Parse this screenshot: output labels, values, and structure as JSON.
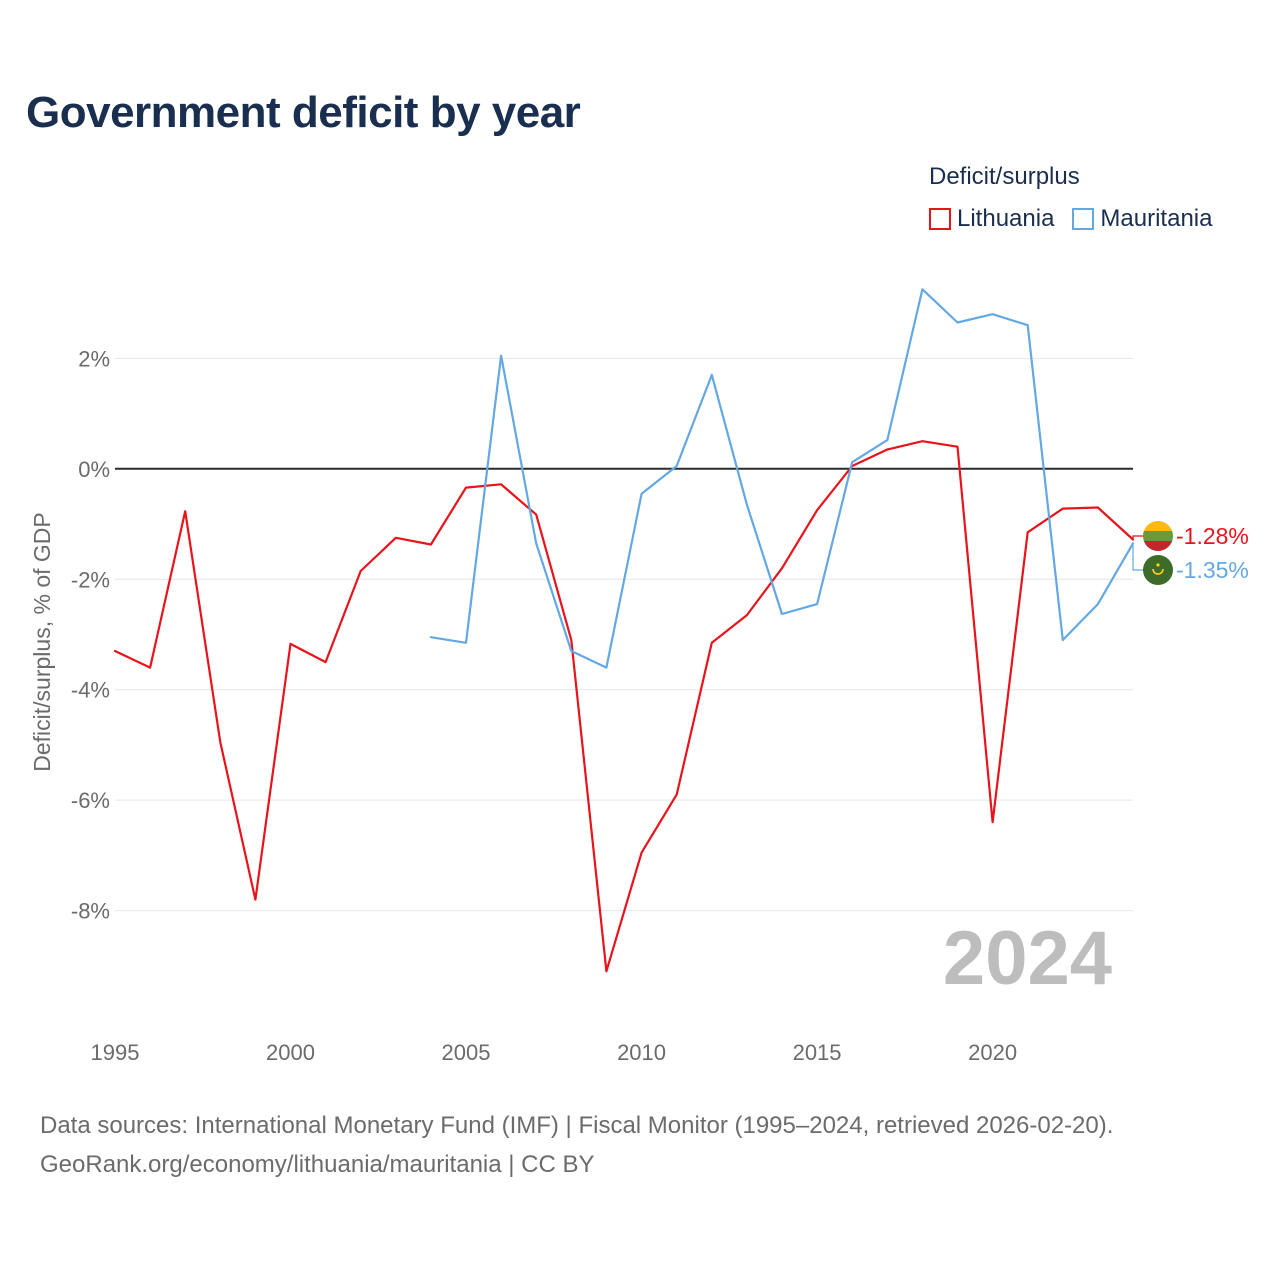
{
  "title": "Government deficit by year",
  "legend": {
    "title": "Deficit/surplus",
    "items": [
      {
        "label": "Lithuania",
        "color": "#e8131b"
      },
      {
        "label": "Mauritania",
        "color": "#64a8e3"
      }
    ]
  },
  "footer": {
    "line1": "Data sources: International Monetary Fund (IMF) | Fiscal Monitor (1995–2024, retrieved 2026-02-20).",
    "line2": "GeoRank.org/economy/lithuania/mauritania | CC BY"
  },
  "chart_data": {
    "type": "line",
    "title": "Government deficit by year",
    "xlabel": "",
    "ylabel": "Deficit/surplus, % of GDP",
    "xlim": [
      1995,
      2024
    ],
    "ylim": [
      -9.8,
      3.6
    ],
    "x_ticks": [
      1995,
      2000,
      2005,
      2010,
      2015,
      2020
    ],
    "x_tick_labels": [
      "1995",
      "2000",
      "2005",
      "2010",
      "2015",
      "2020"
    ],
    "y_ticks": [
      2,
      0,
      -2,
      -4,
      -6,
      -8
    ],
    "y_tick_labels": [
      "2%",
      "0%",
      "-2%",
      "-4%",
      "-6%",
      "-8%"
    ],
    "grid": true,
    "zero_line": true,
    "year_watermark": "2024",
    "series": [
      {
        "name": "Lithuania",
        "color": "#e8131b",
        "x": [
          1995,
          1996,
          1997,
          1998,
          1999,
          2000,
          2001,
          2002,
          2003,
          2004,
          2005,
          2006,
          2007,
          2008,
          2009,
          2010,
          2011,
          2012,
          2013,
          2014,
          2015,
          2016,
          2017,
          2018,
          2019,
          2020,
          2021,
          2022,
          2023,
          2024
        ],
        "values": [
          -3.3,
          -3.6,
          -0.77,
          -4.95,
          -7.8,
          -3.17,
          -3.5,
          -1.85,
          -1.25,
          -1.37,
          -0.34,
          -0.28,
          -0.83,
          -3.1,
          -9.1,
          -6.95,
          -5.9,
          -3.15,
          -2.65,
          -1.8,
          -0.75,
          0.05,
          0.35,
          0.5,
          0.4,
          -6.4,
          -1.15,
          -0.72,
          -0.7,
          -1.28
        ],
        "end_label": "-1.28%"
      },
      {
        "name": "Mauritania",
        "color": "#64a8e3",
        "x": [
          2004,
          2005,
          2006,
          2007,
          2008,
          2009,
          2010,
          2011,
          2012,
          2013,
          2014,
          2015,
          2016,
          2017,
          2018,
          2019,
          2020,
          2021,
          2022,
          2023,
          2024
        ],
        "values": [
          -3.05,
          -3.15,
          2.05,
          -1.35,
          -3.3,
          -3.6,
          -0.45,
          0.05,
          1.7,
          -0.65,
          -2.63,
          -2.45,
          0.12,
          0.52,
          3.25,
          2.65,
          2.8,
          2.6,
          -3.1,
          -2.45,
          -1.35
        ],
        "end_label": "-1.35%"
      }
    ]
  }
}
